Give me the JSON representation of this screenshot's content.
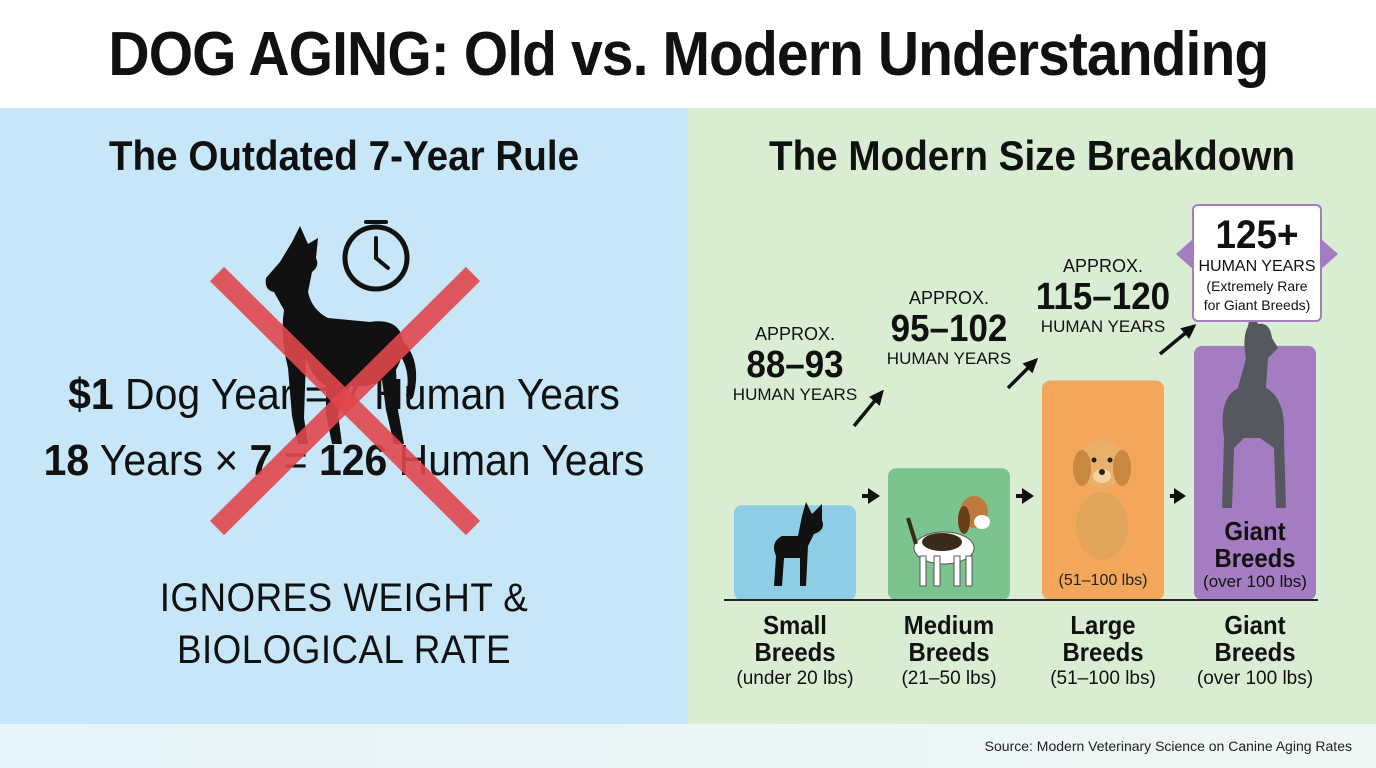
{
  "title": "DOG AGING: Old vs. Modern Understanding",
  "left": {
    "heading": "The Outdated 7-Year Rule",
    "formula_line1_prefix": "$1",
    "formula_line1_rest": " Dog Year = 7 Human Years",
    "formula_line2_prefix": "18",
    "formula_line2_mid": " Years × ",
    "formula_line2_seven": "7",
    "formula_line2_eq": " = ",
    "formula_line2_result": "126",
    "formula_line2_tail": " Human Years",
    "ignores_line1": "IGNORES WEIGHT &",
    "ignores_line2": "BIOLOGICAL RATE",
    "colors": {
      "cross": "#e0474c",
      "panel": "#c7e6f7"
    }
  },
  "right": {
    "heading": "The Modern Size Breakdown",
    "colors": {
      "panel": "#d9edd3"
    }
  },
  "chart_data": {
    "type": "bar",
    "categories": [
      "Small Breeds",
      "Medium Breeds",
      "Large Breeds",
      "Giant Breeds"
    ],
    "category_lines": [
      [
        "Small",
        "Breeds"
      ],
      [
        "Medium",
        "Breeds"
      ],
      [
        "Large",
        "Breeds"
      ],
      [
        "Giant",
        "Breeds"
      ]
    ],
    "weights": [
      "(under 20 lbs)",
      "(21–50 lbs)",
      "(51–100 lbs)",
      "(over 100 lbs)"
    ],
    "values": [
      90.5,
      98.5,
      117.5,
      125
    ],
    "ranges": [
      "88–93",
      "95–102",
      "115–120",
      "125+"
    ],
    "approx_label": "APPROX.",
    "unit_label": "HUMAN YEARS",
    "bar_colors": [
      "#8ecde6",
      "#7cc48f",
      "#f3a75a",
      "#a47cc1"
    ],
    "giant_note_lines": [
      "(Extremely Rare",
      "for Giant Breeds)"
    ],
    "large_bar_note": "(51–100 lbs)",
    "giant_bar_name_lines": [
      "Giant",
      "Breeds"
    ],
    "giant_bar_note": "(over 100 lbs)",
    "icons": [
      "chihuahua-icon",
      "beagle-icon",
      "golden-retriever-icon",
      "great-dane-icon"
    ],
    "title": "The Modern Size Breakdown",
    "xlabel": "",
    "ylabel": "",
    "grid": false
  },
  "footer": {
    "source": "Source: Modern Veterinary Science on Canine Aging Rates"
  }
}
